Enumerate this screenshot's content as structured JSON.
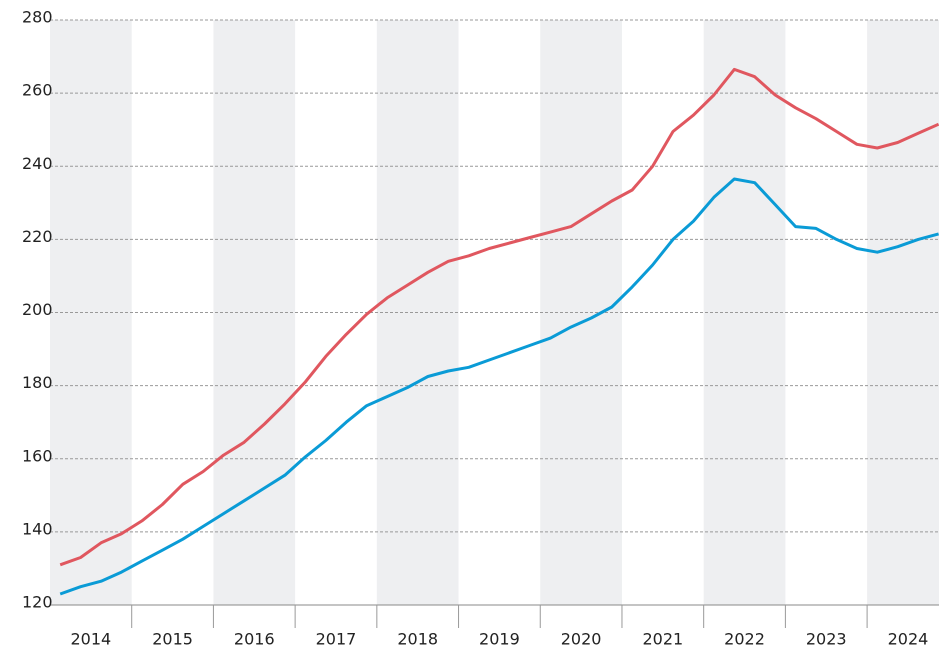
{
  "chart_data": {
    "type": "line",
    "x": [
      2014.125,
      2014.375,
      2014.625,
      2014.875,
      2015.125,
      2015.375,
      2015.625,
      2015.875,
      2016.125,
      2016.375,
      2016.625,
      2016.875,
      2017.125,
      2017.375,
      2017.625,
      2017.875,
      2018.125,
      2018.375,
      2018.625,
      2018.875,
      2019.125,
      2019.375,
      2019.625,
      2019.875,
      2020.125,
      2020.375,
      2020.625,
      2020.875,
      2021.125,
      2021.375,
      2021.625,
      2021.875,
      2022.125,
      2022.375,
      2022.625,
      2022.875,
      2023.125,
      2023.375,
      2023.625,
      2023.875,
      2024.125,
      2024.375,
      2024.625,
      2024.875
    ],
    "series": [
      {
        "color": "#e0575f",
        "values": [
          131,
          133,
          137,
          139.5,
          143,
          147.5,
          153,
          156.5,
          161,
          164.5,
          169.5,
          175,
          181,
          188,
          194,
          199.5,
          204,
          207.5,
          211,
          214,
          215.5,
          217.5,
          219,
          220.5,
          222,
          223.5,
          227,
          230.5,
          233.5,
          240,
          249.5,
          254,
          259.5,
          266.5,
          264.5,
          259.5,
          256,
          253,
          249.5,
          246,
          245,
          246.5,
          249,
          251.5
        ]
      },
      {
        "color": "#0a9bd6",
        "values": [
          123,
          125,
          126.5,
          129,
          132,
          135,
          138,
          141.5,
          145,
          148.5,
          152,
          155.5,
          160.5,
          165,
          170,
          174.5,
          177,
          179.5,
          182.5,
          184,
          185,
          187,
          189,
          191,
          193,
          196,
          198.5,
          201.5,
          207,
          213,
          220,
          225,
          231.5,
          236.5,
          235.5,
          229.5,
          223.5,
          223,
          220,
          217.5,
          216.5,
          218,
          220,
          221.5
        ]
      }
    ],
    "xlim": [
      2014,
      2024.88
    ],
    "xticks": [
      2014,
      2015,
      2016,
      2017,
      2018,
      2019,
      2020,
      2021,
      2022,
      2023,
      2024
    ],
    "ylim": [
      120,
      280
    ],
    "yticks": [
      120,
      140,
      160,
      180,
      200,
      220,
      240,
      260,
      280
    ],
    "grid": true,
    "band_color": "#eeeff1"
  }
}
